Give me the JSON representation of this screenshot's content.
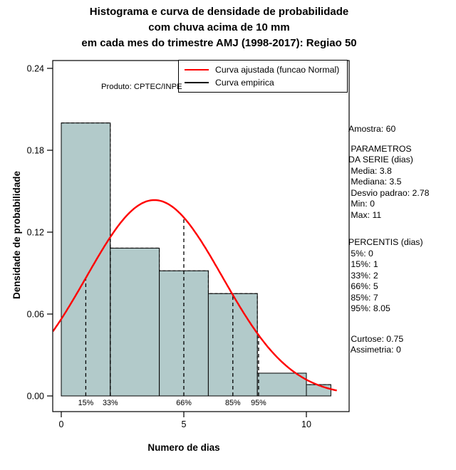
{
  "title": {
    "line1": "Histograma e curva de densidade de probabilidade",
    "line2": "com chuva acima de 10 mm",
    "line3": "em cada mes do trimestre AMJ (1998-2017): Regiao 50"
  },
  "product_note": "Produto: CPTEC/INPE",
  "legend": {
    "items": [
      {
        "label": "Curva ajustada (funcao Normal)",
        "color": "#ff0000"
      },
      {
        "label": "Curva empirica",
        "color": "#000000"
      }
    ]
  },
  "axes": {
    "y_label": "Densidade de probabilidade",
    "x_label": "Numero de dias",
    "y_ticks": [
      "0.00",
      "0.06",
      "0.12",
      "0.18",
      "0.24"
    ],
    "y_tick_values": [
      0,
      0.06,
      0.12,
      0.18,
      0.24
    ],
    "x_ticks": [
      "0",
      "5",
      "10"
    ],
    "x_tick_values": [
      0,
      5,
      10
    ]
  },
  "stats_panel": {
    "groups": [
      [
        "Amostra: 60"
      ],
      [
        " PARAMETROS",
        "DA SERIE (dias)",
        " Media: 3.8",
        " Mediana: 3.5",
        " Desvio padrao: 2.78",
        " Min: 0",
        " Max: 11"
      ],
      [
        "PERCENTIS (dias)",
        " 5%: 0",
        " 15%: 1",
        " 33%: 2",
        " 66%: 5",
        " 85%: 7",
        " 95%: 8.05"
      ],
      [
        " Curtose: 0.75",
        " Assimetria: 0"
      ]
    ]
  },
  "chart_data": {
    "type": "bar",
    "subtype": "histogram-with-density",
    "title": "Histograma e curva de densidade de probabilidade com chuva acima de 10 mm em cada mes do trimestre AMJ (1998-2017): Regiao 50",
    "xlabel": "Numero de dias",
    "ylabel": "Densidade de probabilidade",
    "xlim": [
      0,
      11
    ],
    "ylim": [
      0,
      0.24
    ],
    "legend_position": "top-center",
    "grid": false,
    "bars": [
      {
        "x0": 0,
        "x1": 2,
        "density": 0.2
      },
      {
        "x0": 2,
        "x1": 4,
        "density": 0.1083
      },
      {
        "x0": 4,
        "x1": 6,
        "density": 0.0917
      },
      {
        "x0": 6,
        "x1": 8,
        "density": 0.075
      },
      {
        "x0": 8,
        "x1": 10,
        "density": 0.0167
      },
      {
        "x0": 10,
        "x1": 11,
        "density": 0.0083
      }
    ],
    "normal_fit": {
      "mean": 3.8,
      "sd": 2.78
    },
    "percentile_lines": [
      {
        "label": "15%",
        "x": 1
      },
      {
        "label": "33%",
        "x": 2
      },
      {
        "label": "66%",
        "x": 5
      },
      {
        "label": "85%",
        "x": 7
      },
      {
        "label": "95%",
        "x": 8.05
      }
    ],
    "summary": {
      "sample_size": 60,
      "mean": 3.8,
      "median": 3.5,
      "sd": 2.78,
      "min": 0,
      "max": 11,
      "kurtosis": 0.75,
      "skewness": 0,
      "percentiles": {
        "5%": 0,
        "15%": 1,
        "33%": 2,
        "66%": 5,
        "85%": 7,
        "95%": 8.05
      }
    },
    "colors": {
      "bar_fill": "#b2caca",
      "bar_stroke": "#000000",
      "fitted_curve": "#ff0000",
      "empirical": "#000000"
    }
  }
}
